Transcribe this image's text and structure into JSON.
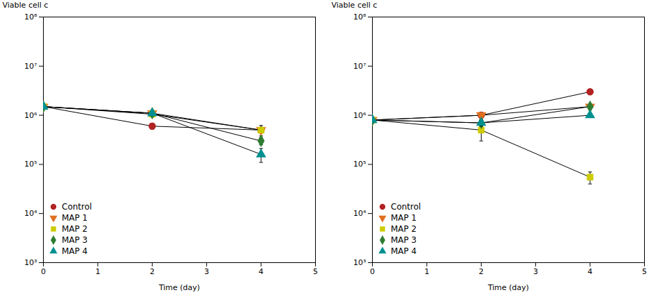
{
  "chart_data": [
    {
      "type": "line",
      "xlabel": "Time (day)",
      "ylabel": "Viable cell c",
      "x": [
        0,
        2,
        4
      ],
      "xlim": [
        0,
        5
      ],
      "xticks": [
        0,
        1,
        2,
        3,
        4,
        5
      ],
      "ylim": [
        1000,
        100000000
      ],
      "yticks": [
        {
          "value": 1000,
          "label": "10³"
        },
        {
          "value": 10000,
          "label": "10⁴"
        },
        {
          "value": 100000,
          "label": "10⁵"
        },
        {
          "value": 1000000,
          "label": "10⁶"
        },
        {
          "value": 10000000,
          "label": "10⁷"
        },
        {
          "value": 100000000,
          "label": "10⁸"
        }
      ],
      "log": "y",
      "legend": "lower left",
      "series": [
        {
          "name": "Control",
          "color": "#B22222",
          "marker": "circle",
          "values": [
            1500000,
            600000,
            500000
          ],
          "errors_low": [
            100000,
            80000,
            120000
          ],
          "errors_high": [
            100000,
            80000,
            120000
          ]
        },
        {
          "name": "MAP 1",
          "color": "#E07020",
          "marker": "triangle-down",
          "values": [
            1500000,
            1100000,
            500000
          ],
          "errors_low": [
            100000,
            150000,
            50000
          ],
          "errors_high": [
            100000,
            150000,
            50000
          ]
        },
        {
          "name": "MAP 2",
          "color": "#CCCC00",
          "marker": "square",
          "values": [
            1500000,
            1050000,
            500000
          ],
          "errors_low": [
            100000,
            120000,
            50000
          ],
          "errors_high": [
            100000,
            120000,
            50000
          ]
        },
        {
          "name": "MAP 3",
          "color": "#2E7D32",
          "marker": "diamond",
          "values": [
            1500000,
            1100000,
            300000
          ],
          "errors_low": [
            100000,
            120000,
            50000
          ],
          "errors_high": [
            100000,
            120000,
            50000
          ]
        },
        {
          "name": "MAP 4",
          "color": "#009090",
          "marker": "triangle-up",
          "values": [
            1500000,
            1100000,
            160000
          ],
          "errors_low": [
            100000,
            120000,
            50000
          ],
          "errors_high": [
            100000,
            120000,
            50000
          ]
        }
      ]
    },
    {
      "type": "line",
      "xlabel": "Time (day)",
      "ylabel": "Viable cell c",
      "x": [
        0,
        2,
        4
      ],
      "xlim": [
        0,
        5
      ],
      "xticks": [
        0,
        1,
        2,
        3,
        4,
        5
      ],
      "ylim": [
        1000,
        100000000
      ],
      "yticks": [
        {
          "value": 1000,
          "label": "10³"
        },
        {
          "value": 10000,
          "label": "10⁴"
        },
        {
          "value": 100000,
          "label": "10⁵"
        },
        {
          "value": 1000000,
          "label": "10⁶"
        },
        {
          "value": 10000000,
          "label": "10⁷"
        },
        {
          "value": 100000000,
          "label": "10⁸"
        }
      ],
      "log": "y",
      "legend": "lower left",
      "series": [
        {
          "name": "Control",
          "color": "#B22222",
          "marker": "circle",
          "values": [
            800000,
            1000000,
            3000000
          ],
          "errors_low": [
            50000,
            150000,
            200000
          ],
          "errors_high": [
            50000,
            150000,
            200000
          ]
        },
        {
          "name": "MAP 1",
          "color": "#E07020",
          "marker": "triangle-down",
          "values": [
            800000,
            1000000,
            1500000
          ],
          "errors_low": [
            50000,
            120000,
            100000
          ],
          "errors_high": [
            50000,
            120000,
            100000
          ]
        },
        {
          "name": "MAP 2",
          "color": "#CCCC00",
          "marker": "square",
          "values": [
            800000,
            500000,
            55000
          ],
          "errors_low": [
            50000,
            200000,
            15000
          ],
          "errors_high": [
            50000,
            200000,
            15000
          ]
        },
        {
          "name": "MAP 3",
          "color": "#2E7D32",
          "marker": "diamond",
          "values": [
            800000,
            700000,
            1500000
          ],
          "errors_low": [
            50000,
            100000,
            100000
          ],
          "errors_high": [
            50000,
            100000,
            100000
          ]
        },
        {
          "name": "MAP 4",
          "color": "#009090",
          "marker": "triangle-up",
          "values": [
            800000,
            700000,
            1000000
          ],
          "errors_low": [
            50000,
            100000,
            50000
          ],
          "errors_high": [
            50000,
            100000,
            50000
          ]
        }
      ]
    }
  ]
}
